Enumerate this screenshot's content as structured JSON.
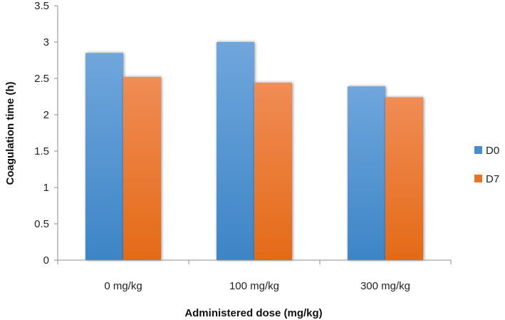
{
  "chart_data": {
    "type": "bar",
    "title": "",
    "xlabel": "Administered dose (mg/kg)",
    "ylabel": "Coagulation  time (h)",
    "categories": [
      "0 mg/kg",
      "100 mg/kg",
      "300 mg/kg"
    ],
    "series": [
      {
        "name": "D0",
        "values": [
          2.85,
          3.0,
          2.39
        ],
        "color": "#4a8bcf"
      },
      {
        "name": "D7",
        "values": [
          2.52,
          2.44,
          2.24
        ],
        "color": "#e87326"
      }
    ],
    "ylim": [
      0,
      3.5
    ],
    "yticks": [
      "0",
      "0.5",
      "1",
      "1.5",
      "2",
      "2.5",
      "3",
      "3.5"
    ],
    "grid": false,
    "legend_position": "right"
  }
}
